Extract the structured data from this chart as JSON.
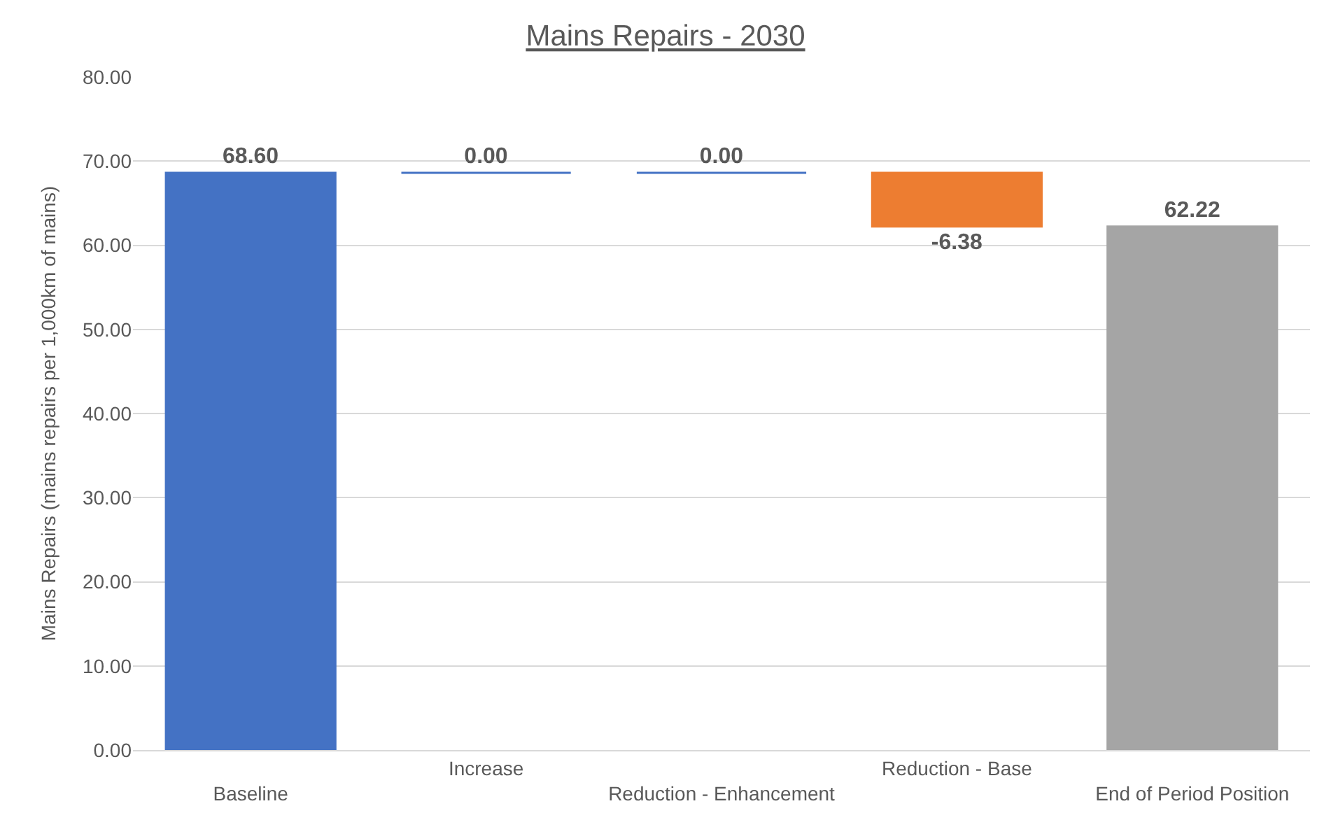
{
  "chart_data": {
    "type": "bar",
    "title": "Mains Repairs - 2030",
    "ylabel": "Mains Repairs (mains repairs per 1,000km of mains)",
    "categories": [
      "Baseline",
      "Increase",
      "Reduction - Enhancement",
      "Reduction - Base",
      "End of Period Position"
    ],
    "values": [
      68.6,
      0.0,
      0.0,
      -6.38,
      62.22
    ],
    "base": [
      0,
      68.6,
      68.6,
      68.6,
      0
    ],
    "colors": [
      "#4472c4",
      "#4472c4",
      "#4472c4",
      "#ed7d31",
      "#a5a5a5"
    ],
    "value_labels": [
      "68.60",
      "0.00",
      "0.00",
      "-6.38",
      "62.22"
    ],
    "ylim": [
      0,
      80
    ],
    "yticks": [
      {
        "value": 0,
        "label": "0.00"
      },
      {
        "value": 10,
        "label": "10.00"
      },
      {
        "value": 20,
        "label": "20.00"
      },
      {
        "value": 30,
        "label": "30.00"
      },
      {
        "value": 40,
        "label": "40.00"
      },
      {
        "value": 50,
        "label": "50.00"
      },
      {
        "value": 60,
        "label": "60.00"
      },
      {
        "value": 70,
        "label": "70.00"
      },
      {
        "value": 80,
        "label": "80.00"
      }
    ],
    "grid": "y",
    "legend": false
  }
}
